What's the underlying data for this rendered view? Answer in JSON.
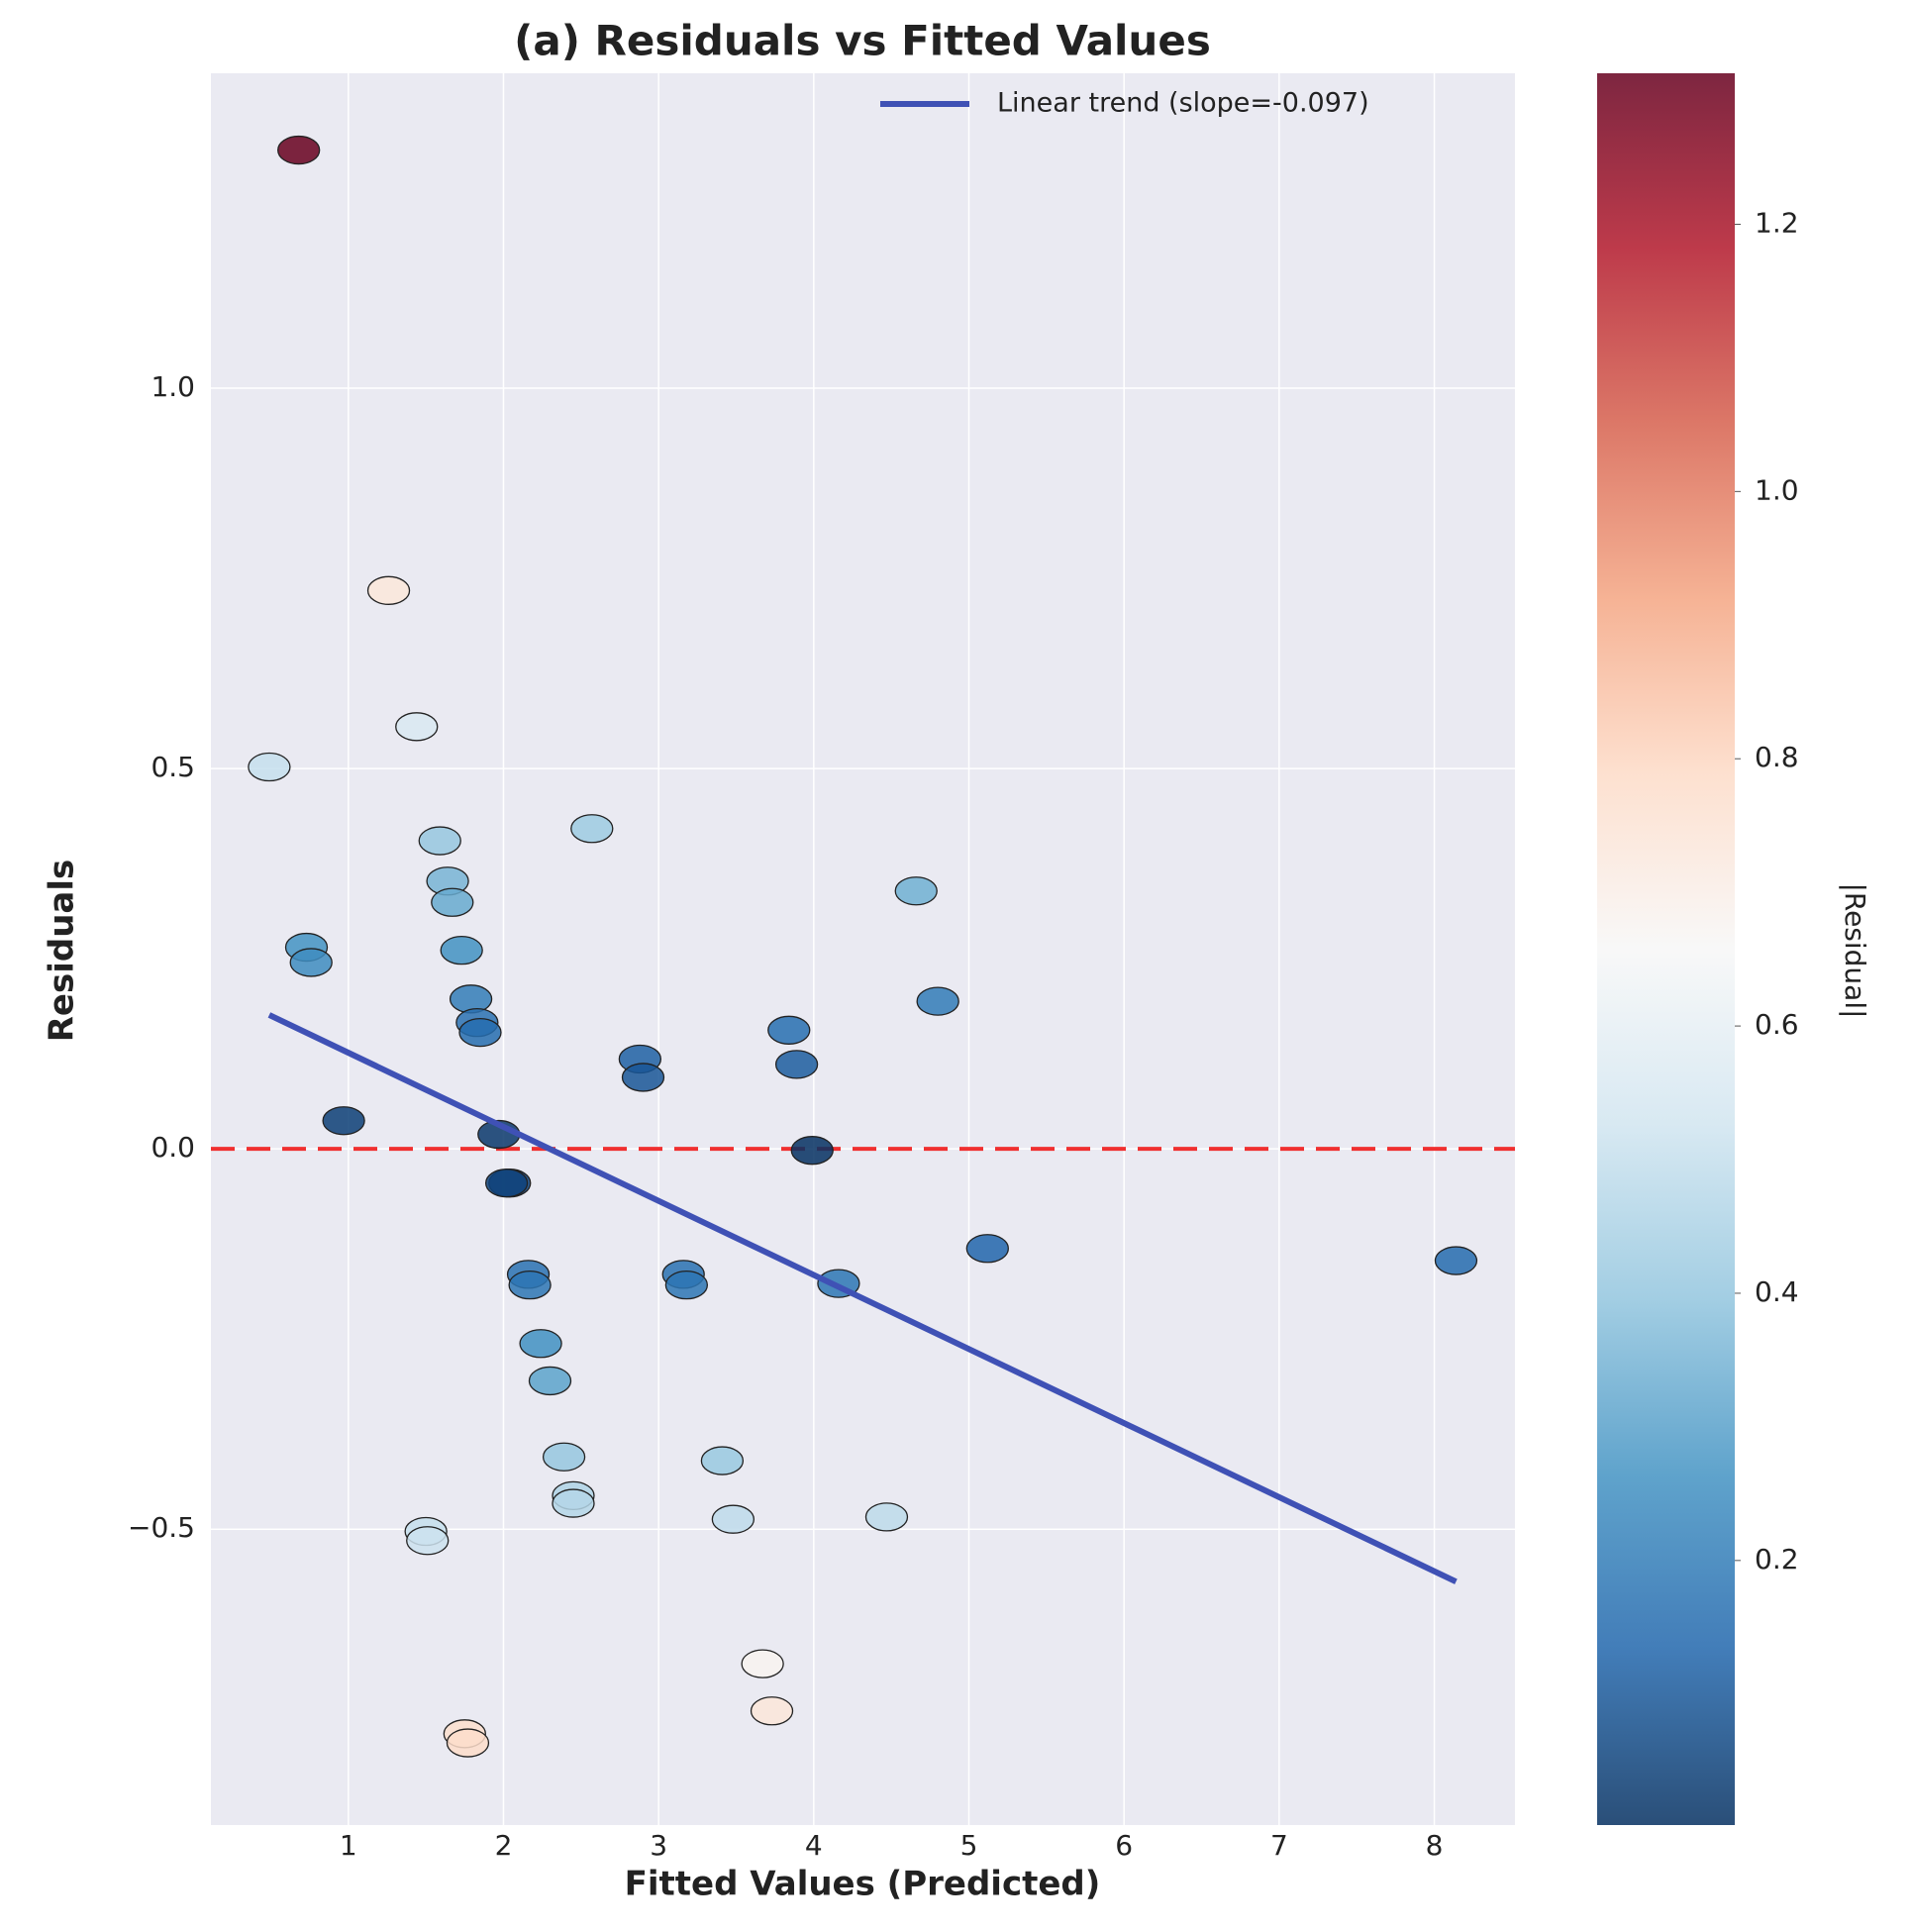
{
  "chart_data": {
    "type": "scatter",
    "title": "(a) Residuals vs Fitted Values",
    "x_label": "Fitted Values (Predicted)",
    "y_label": "Residuals",
    "xlim": [
      0.114,
      8.52
    ],
    "ylim": [
      -0.889,
      1.414
    ],
    "xticks": [
      1,
      2,
      3,
      4,
      5,
      6,
      7,
      8
    ],
    "yticks": [
      {
        "value": -0.5,
        "label": "−0.5"
      },
      {
        "value": 0,
        "label": "0.0"
      },
      {
        "value": 0.5,
        "label": "0.5"
      },
      {
        "value": 1,
        "label": "1.0"
      }
    ],
    "grid": true,
    "background": "#eaeaf2",
    "points": {
      "x": [
        0.68,
        1.26,
        1.44,
        0.49,
        1.59,
        2.57,
        1.64,
        1.67,
        4.66,
        0.73,
        0.76,
        1.73,
        1.79,
        4.8,
        1.83,
        1.85,
        3.84,
        2.88,
        2.9,
        3.89,
        0.97,
        1.97,
        3.99,
        2.04,
        2.02,
        5.12,
        8.14,
        2.16,
        2.17,
        3.16,
        3.18,
        4.16,
        2.24,
        2.3,
        2.39,
        3.41,
        2.45,
        2.45,
        1.5,
        1.51,
        3.48,
        4.47,
        3.67,
        3.73,
        1.75,
        1.77
      ],
      "values": [
        1.313,
        0.734,
        0.555,
        0.502,
        0.405,
        0.421,
        0.352,
        0.324,
        0.339,
        0.265,
        0.245,
        0.261,
        0.197,
        0.194,
        0.166,
        0.153,
        0.156,
        0.118,
        0.094,
        0.111,
        0.037,
        0.019,
        -0.002,
        -0.045,
        -0.045,
        -0.131,
        -0.147,
        -0.165,
        -0.179,
        -0.165,
        -0.179,
        -0.177,
        -0.256,
        -0.305,
        -0.405,
        -0.41,
        -0.456,
        -0.466,
        -0.503,
        -0.515,
        -0.487,
        -0.484,
        -0.677,
        -0.739,
        -0.769,
        -0.781
      ]
    },
    "series": [
      {
        "name": "Linear trend (slope=-0.097)",
        "color": "#3f51b5",
        "x": [
          0.49,
          8.14
        ],
        "values": [
          0.176,
          -0.569
        ]
      }
    ],
    "hline": {
      "value": 0,
      "color": "#f03030"
    },
    "legend": "upper right",
    "colorbar": {
      "label": "|Residual|",
      "clim": [
        0.002,
        1.313
      ],
      "ticks": [
        {
          "value": 0.2,
          "label": "0.2"
        },
        {
          "value": 0.4,
          "label": "0.4"
        },
        {
          "value": 0.6,
          "label": "0.6"
        },
        {
          "value": 0.8,
          "label": "0.8"
        },
        {
          "value": 1.0,
          "label": "1.0"
        },
        {
          "value": 1.2,
          "label": "1.2"
        }
      ],
      "colormap": [
        "#053061",
        "#2166ac",
        "#4393c3",
        "#92c5de",
        "#d1e5f0",
        "#f7f7f7",
        "#fddbc7",
        "#f4a582",
        "#d6604d",
        "#b2182b",
        "#67001f"
      ]
    }
  }
}
